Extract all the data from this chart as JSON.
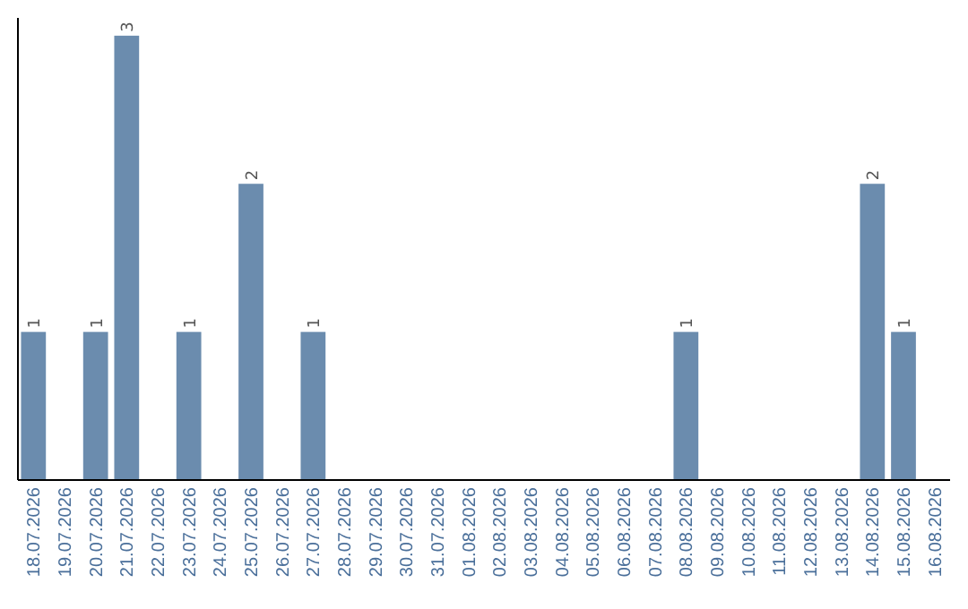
{
  "chart_data": {
    "type": "bar",
    "categories": [
      "18.07.2026",
      "19.07.2026",
      "20.07.2026",
      "21.07.2026",
      "22.07.2026",
      "23.07.2026",
      "24.07.2026",
      "25.07.2026",
      "26.07.2026",
      "27.07.2026",
      "28.07.2026",
      "29.07.2026",
      "30.07.2026",
      "31.07.2026",
      "01.08.2026",
      "02.08.2026",
      "03.08.2026",
      "04.08.2026",
      "05.08.2026",
      "06.08.2026",
      "07.08.2026",
      "08.08.2026",
      "09.08.2026",
      "10.08.2026",
      "11.08.2026",
      "12.08.2026",
      "13.08.2026",
      "14.08.2026",
      "15.08.2026",
      "16.08.2026"
    ],
    "values": [
      1,
      0,
      1,
      3,
      0,
      1,
      0,
      2,
      0,
      1,
      0,
      0,
      0,
      0,
      0,
      0,
      0,
      0,
      0,
      0,
      0,
      1,
      0,
      0,
      0,
      0,
      0,
      2,
      1,
      0
    ],
    "value_labels": [
      "1",
      null,
      "1",
      "3",
      null,
      "1",
      null,
      "2",
      null,
      "1",
      null,
      null,
      null,
      null,
      null,
      null,
      null,
      null,
      null,
      null,
      null,
      "1",
      null,
      null,
      null,
      null,
      null,
      "2",
      "1",
      null
    ],
    "color": "#6b8cae",
    "tick_labels": "x"
  }
}
